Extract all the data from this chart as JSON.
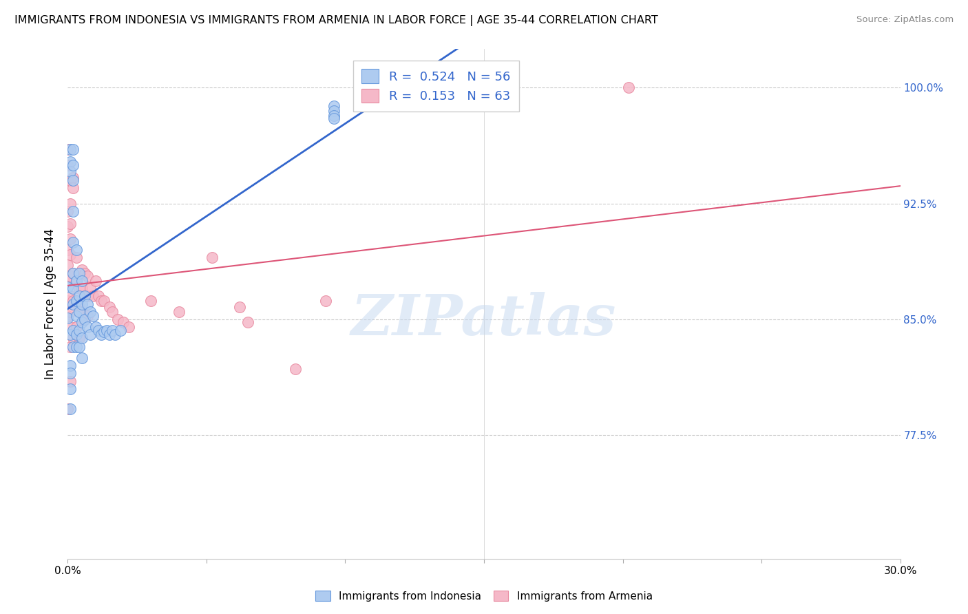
{
  "title": "IMMIGRANTS FROM INDONESIA VS IMMIGRANTS FROM ARMENIA IN LABOR FORCE | AGE 35-44 CORRELATION CHART",
  "source": "Source: ZipAtlas.com",
  "ylabel": "In Labor Force | Age 35-44",
  "xmin": 0.0,
  "xmax": 0.3,
  "ymin": 0.695,
  "ymax": 1.025,
  "indonesia_color": "#aecbf0",
  "indonesia_edge": "#6699dd",
  "armenia_color": "#f5b8c8",
  "armenia_edge": "#e88aa0",
  "indonesia_line_color": "#3366cc",
  "armenia_line_color": "#dd5577",
  "watermark_text": "ZIPatlas",
  "indonesia_R": 0.524,
  "indonesia_N": 56,
  "armenia_R": 0.153,
  "armenia_N": 63,
  "indo_x": [
    0.0,
    0.0,
    0.001,
    0.001,
    0.001,
    0.001,
    0.001,
    0.001,
    0.001,
    0.001,
    0.002,
    0.002,
    0.002,
    0.002,
    0.002,
    0.002,
    0.002,
    0.002,
    0.002,
    0.002,
    0.003,
    0.003,
    0.003,
    0.003,
    0.003,
    0.003,
    0.004,
    0.004,
    0.004,
    0.004,
    0.004,
    0.005,
    0.005,
    0.005,
    0.005,
    0.005,
    0.006,
    0.006,
    0.007,
    0.007,
    0.008,
    0.008,
    0.009,
    0.01,
    0.011,
    0.012,
    0.013,
    0.014,
    0.015,
    0.016,
    0.017,
    0.019,
    0.096,
    0.096,
    0.096,
    0.096
  ],
  "indo_y": [
    0.851,
    0.871,
    0.96,
    0.952,
    0.946,
    0.84,
    0.82,
    0.815,
    0.805,
    0.792,
    0.96,
    0.95,
    0.94,
    0.92,
    0.9,
    0.88,
    0.87,
    0.86,
    0.843,
    0.832,
    0.895,
    0.875,
    0.862,
    0.852,
    0.84,
    0.832,
    0.88,
    0.865,
    0.855,
    0.843,
    0.832,
    0.875,
    0.86,
    0.848,
    0.838,
    0.825,
    0.865,
    0.85,
    0.86,
    0.845,
    0.855,
    0.84,
    0.852,
    0.845,
    0.843,
    0.84,
    0.842,
    0.843,
    0.84,
    0.843,
    0.84,
    0.843,
    0.988,
    0.985,
    0.982,
    0.98
  ],
  "arm_x": [
    0.0,
    0.0,
    0.0,
    0.0,
    0.0,
    0.0,
    0.0,
    0.0,
    0.0,
    0.0,
    0.0,
    0.001,
    0.001,
    0.001,
    0.001,
    0.001,
    0.001,
    0.001,
    0.001,
    0.001,
    0.001,
    0.001,
    0.002,
    0.002,
    0.002,
    0.002,
    0.002,
    0.003,
    0.003,
    0.003,
    0.003,
    0.004,
    0.004,
    0.004,
    0.004,
    0.005,
    0.005,
    0.005,
    0.006,
    0.006,
    0.006,
    0.007,
    0.007,
    0.007,
    0.008,
    0.009,
    0.01,
    0.011,
    0.012,
    0.013,
    0.015,
    0.016,
    0.018,
    0.02,
    0.022,
    0.03,
    0.04,
    0.052,
    0.062,
    0.065,
    0.082,
    0.093,
    0.202
  ],
  "arm_y": [
    0.96,
    0.95,
    0.94,
    0.92,
    0.91,
    0.895,
    0.885,
    0.875,
    0.862,
    0.852,
    0.792,
    0.94,
    0.925,
    0.912,
    0.902,
    0.892,
    0.878,
    0.865,
    0.855,
    0.845,
    0.832,
    0.81,
    0.942,
    0.935,
    0.88,
    0.862,
    0.838,
    0.89,
    0.875,
    0.862,
    0.845,
    0.88,
    0.87,
    0.858,
    0.838,
    0.882,
    0.87,
    0.855,
    0.88,
    0.865,
    0.85,
    0.878,
    0.865,
    0.852,
    0.87,
    0.865,
    0.875,
    0.865,
    0.862,
    0.862,
    0.858,
    0.855,
    0.85,
    0.848,
    0.845,
    0.862,
    0.855,
    0.89,
    0.858,
    0.848,
    0.818,
    0.862,
    1.0
  ],
  "yticks": [
    0.775,
    0.85,
    0.925,
    1.0
  ],
  "ytick_labels": [
    "77.5%",
    "85.0%",
    "92.5%",
    "100.0%"
  ],
  "xtick_left_label": "0.0%",
  "xtick_right_label": "30.0%",
  "grid_color": "#cccccc",
  "tick_color": "#3366cc",
  "legend_text_color": "#3366cc"
}
